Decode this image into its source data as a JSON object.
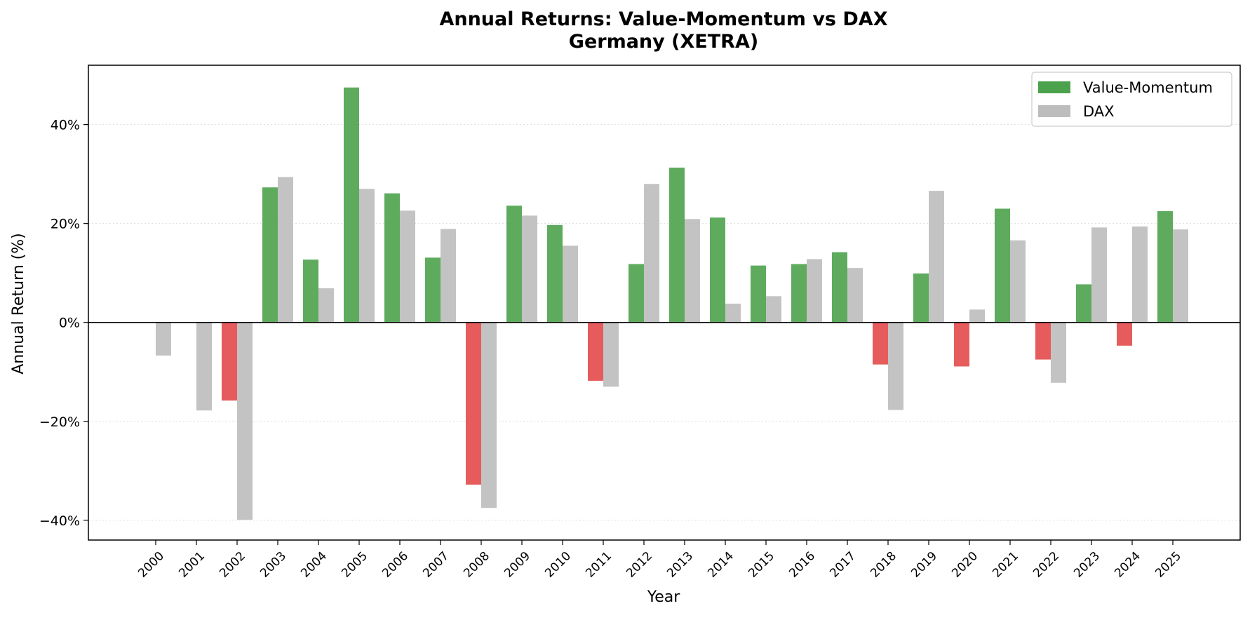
{
  "chart_data": {
    "type": "bar",
    "title": "Annual Returns: Value-Momentum vs DAX",
    "subtitle": "Germany (XETRA)",
    "xlabel": "Year",
    "ylabel": "Annual Return (%)",
    "ylim": [
      -44,
      52
    ],
    "yticks": [
      -40,
      -20,
      0,
      20,
      40
    ],
    "ytick_labels": [
      "−40%",
      "−20%",
      "0%",
      "20%",
      "40%"
    ],
    "grid": true,
    "legend_position": "top-right",
    "categories": [
      "2000",
      "2001",
      "2002",
      "2003",
      "2004",
      "2005",
      "2006",
      "2007",
      "2008",
      "2009",
      "2010",
      "2011",
      "2012",
      "2013",
      "2014",
      "2015",
      "2016",
      "2017",
      "2018",
      "2019",
      "2020",
      "2021",
      "2022",
      "2023",
      "2024",
      "2025"
    ],
    "series": [
      {
        "name": "Value-Momentum",
        "color": "#4ca24c",
        "negative_color": "#e34a4a",
        "values": [
          null,
          null,
          -15.8,
          27.3,
          12.7,
          47.5,
          26.1,
          13.1,
          -32.8,
          23.6,
          19.7,
          -11.8,
          11.8,
          31.3,
          21.2,
          11.5,
          11.8,
          14.2,
          -8.5,
          9.9,
          -8.9,
          23.0,
          -7.5,
          7.7,
          -4.7,
          22.5
        ]
      },
      {
        "name": "DAX",
        "color": "#bdbdbd",
        "values": [
          -6.7,
          -17.8,
          -39.9,
          29.4,
          6.9,
          27.0,
          22.6,
          18.9,
          -37.5,
          21.6,
          15.5,
          -13.0,
          28.0,
          20.9,
          3.8,
          5.3,
          12.8,
          11.0,
          -17.7,
          26.6,
          2.6,
          16.6,
          -12.2,
          19.2,
          19.4,
          18.8
        ]
      }
    ]
  }
}
